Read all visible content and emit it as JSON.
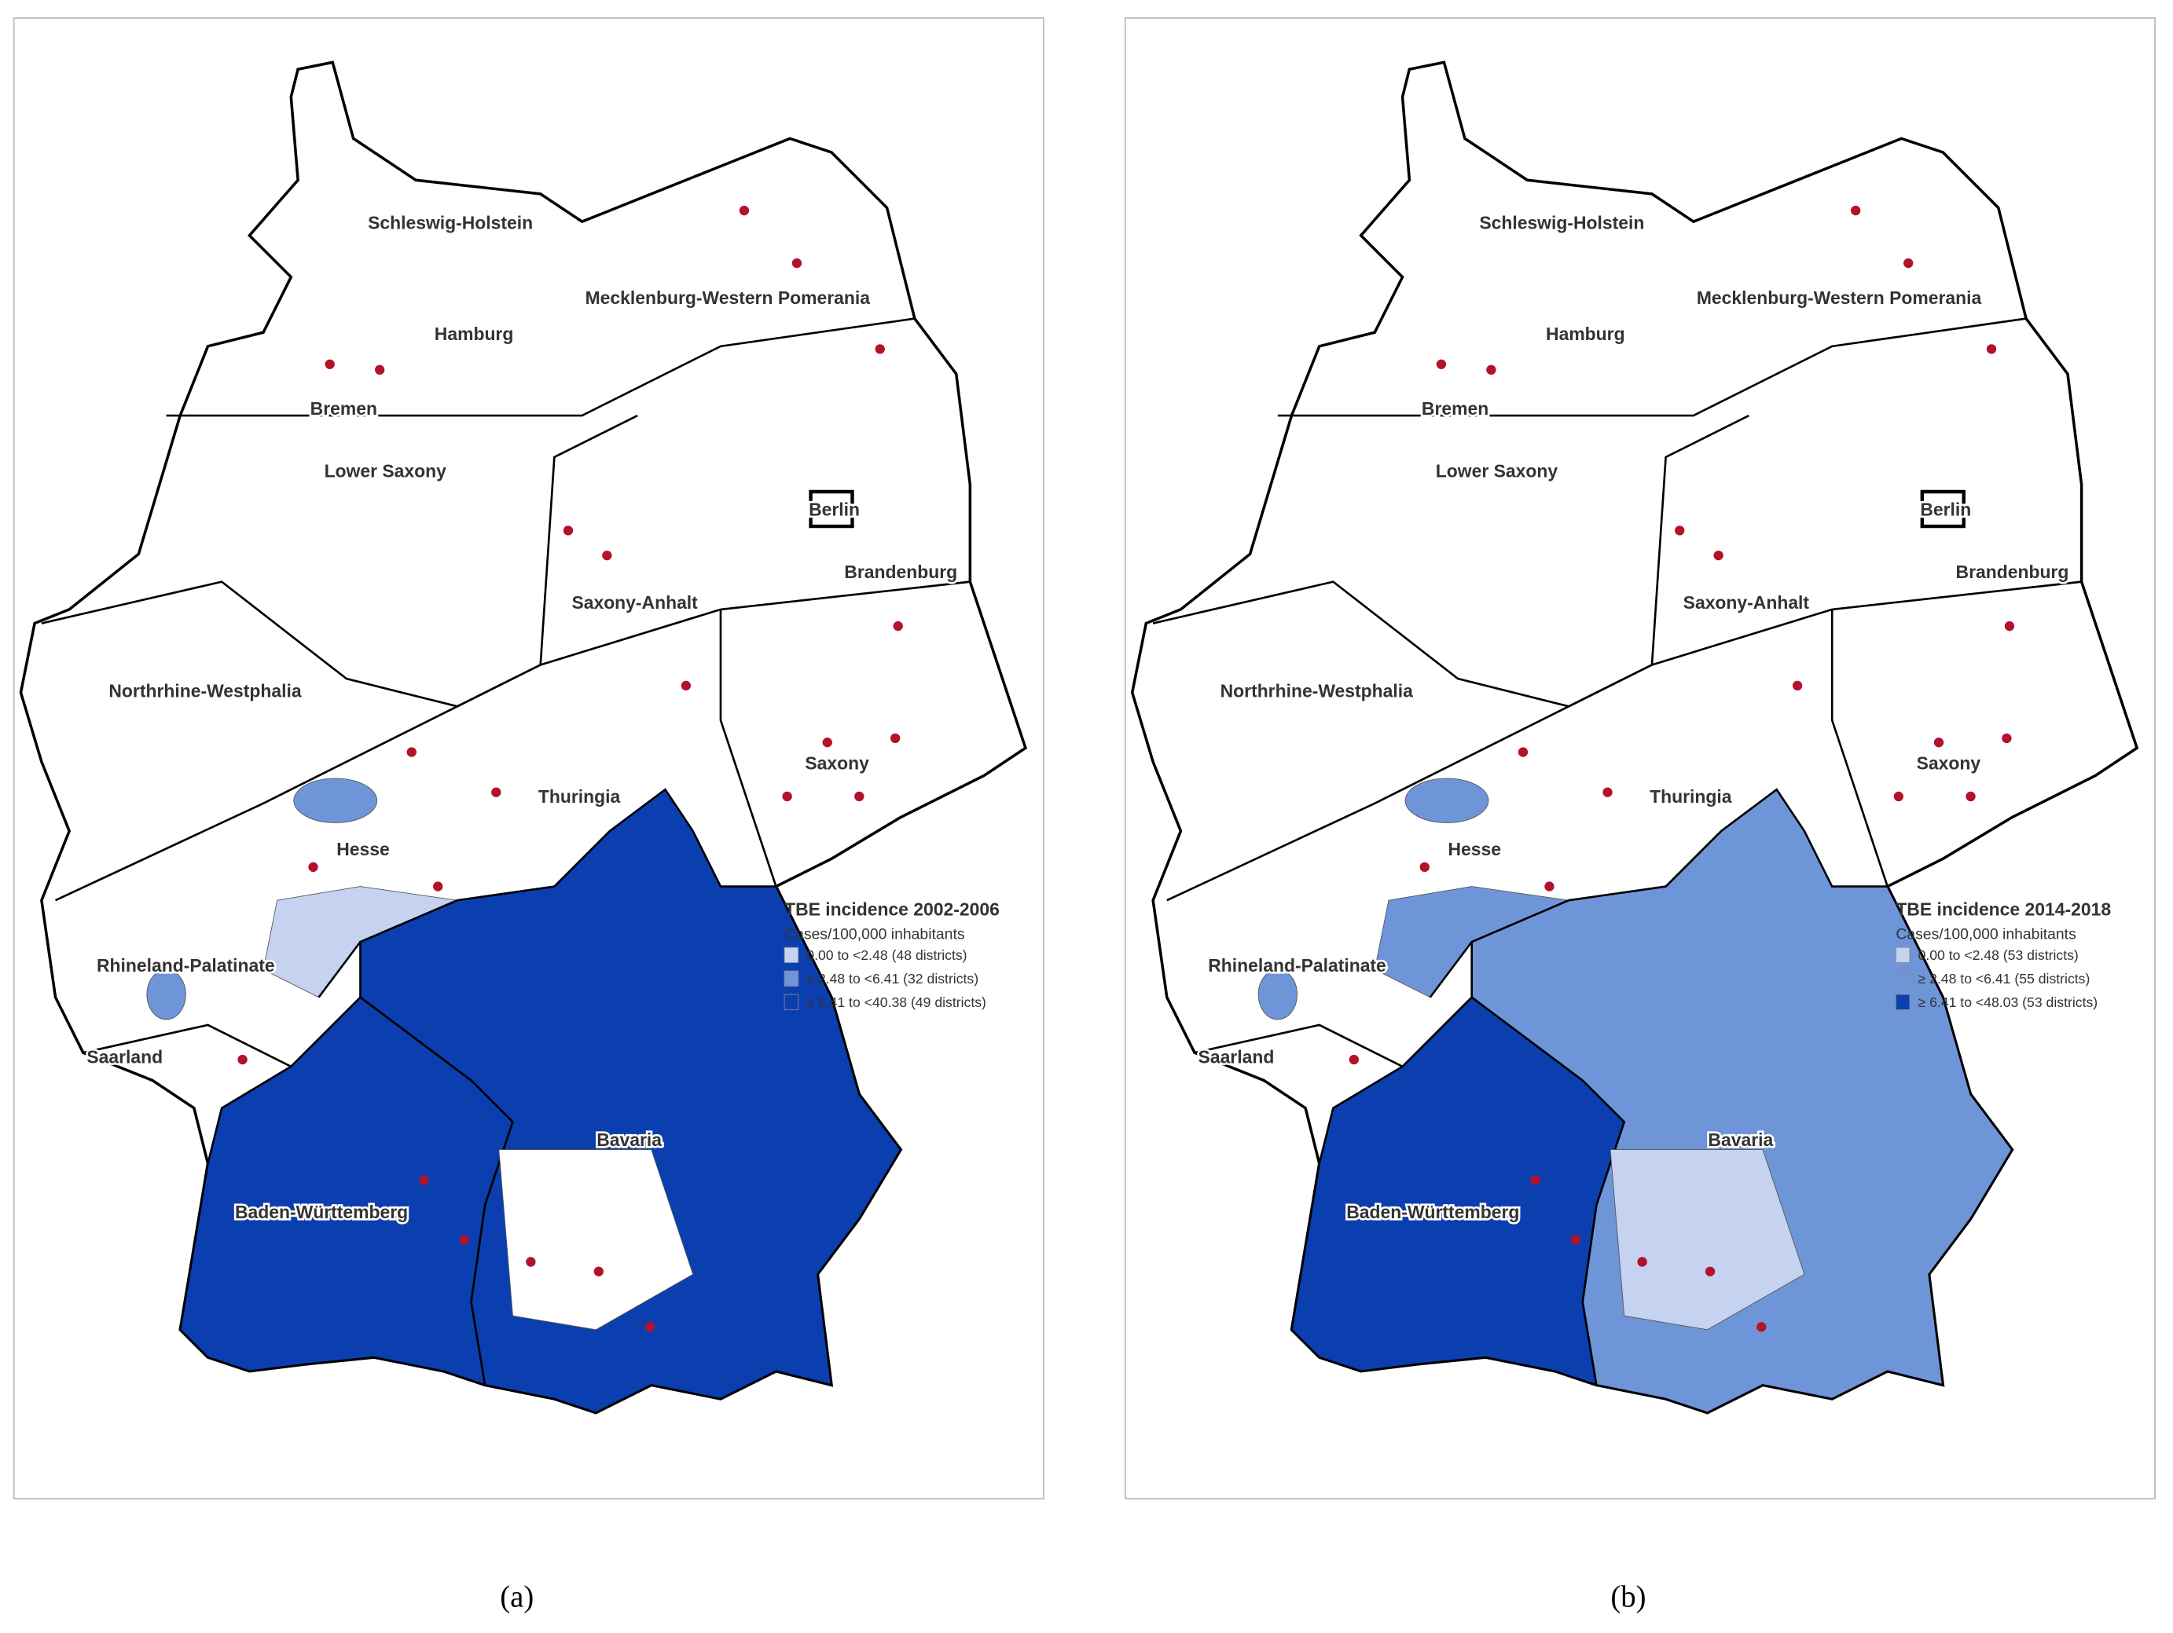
{
  "panels": [
    {
      "caption": "(a)",
      "legend": {
        "title": "TBE incidence 2002-2006",
        "subtitle": "Cases/100,000 inhabitants",
        "items": [
          {
            "label": "0.00 to <2.48 (48 districts)",
            "color": "#c5d3f0"
          },
          {
            "label": "≥ 2.48 to <6.41 (32 districts)",
            "color": "#6f95d9"
          },
          {
            "label": "≥ 6.41 to <40.38 (49 districts)",
            "color": "#0b3fb0"
          }
        ]
      },
      "states": [
        "Schleswig-Holstein",
        "Mecklenburg-Western Pomerania",
        "Hamburg",
        "Bremen",
        "Lower Saxony",
        "Berlin",
        "Brandenburg",
        "Saxony-Anhalt",
        "Northrhine-Westphalia",
        "Saxony",
        "Thuringia",
        "Hesse",
        "Rhineland-Palatinate",
        "Saarland",
        "Bavaria",
        "Baden-Württemberg"
      ]
    },
    {
      "caption": "(b)",
      "legend": {
        "title": "TBE incidence 2014-2018",
        "subtitle": "Cases/100,000 inhabitants",
        "items": [
          {
            "label": "0.00 to <2.48 (53 districts)",
            "color": "#c5d3f0"
          },
          {
            "label": "≥ 2.48 to <6.41 (55 districts)",
            "color": "#6f95d9"
          },
          {
            "label": "≥ 6.41 to <48.03 (53 districts)",
            "color": "#0b3fb0"
          }
        ]
      },
      "states": [
        "Schleswig-Holstein",
        "Mecklenburg-Western Pomerania",
        "Hamburg",
        "Bremen",
        "Lower Saxony",
        "Berlin",
        "Brandenburg",
        "Saxony-Anhalt",
        "Northrhine-Westphalia",
        "Saxony",
        "Thuringia",
        "Hesse",
        "Rhineland-Palatinate",
        "Saarland",
        "Bavaria",
        "Baden-Württemberg"
      ]
    }
  ]
}
